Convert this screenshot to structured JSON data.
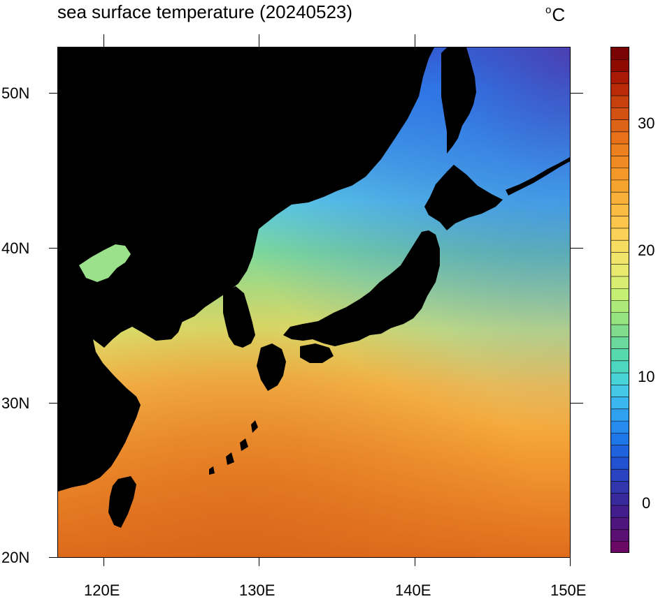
{
  "title": "sea surface temperature (20240523)",
  "units": {
    "superscript": "o",
    "text": "C"
  },
  "axes": {
    "lat_labels": [
      "50N",
      "40N",
      "30N",
      "20N"
    ],
    "lon_labels": [
      "120E",
      "130E",
      "140E",
      "150E"
    ]
  },
  "colorbar": {
    "labels": [
      "30",
      "20",
      "10",
      "0"
    ],
    "colors": [
      "#7a0403",
      "#8e0b00",
      "#a81a05",
      "#b92a08",
      "#c7410e",
      "#d25113",
      "#dd6417",
      "#e67119",
      "#ec7f1e",
      "#f08a22",
      "#f49829",
      "#f7a42f",
      "#f9b038",
      "#fabc43",
      "#fcc54b",
      "#fbd257",
      "#f7dc62",
      "#f1e46b",
      "#e7ea6f",
      "#d8ed71",
      "#c4ef73",
      "#ace978",
      "#94e280",
      "#80dc8c",
      "#6ad99b",
      "#58d8ad",
      "#4dd7c1",
      "#48d3d7",
      "#44c8e6",
      "#3bb6ee",
      "#30a1f0",
      "#268bec",
      "#1f76e6",
      "#1e63dd",
      "#2252d0",
      "#2a43c1",
      "#3136ad",
      "#38299c",
      "#421e8d",
      "#4e157e",
      "#5c0f72",
      "#6a0a66"
    ]
  },
  "map": {
    "land_color": "#000000",
    "sst_colors": {
      "cold": "#3b3fb8",
      "subpolar": "#2f7ce8",
      "cool": "#5fd0e6",
      "mild": "#7dd99a",
      "temperate": "#c8ea74",
      "warm": "#f8c14e",
      "subtropical": "#f29b33",
      "tropical": "#e6761f"
    }
  }
}
